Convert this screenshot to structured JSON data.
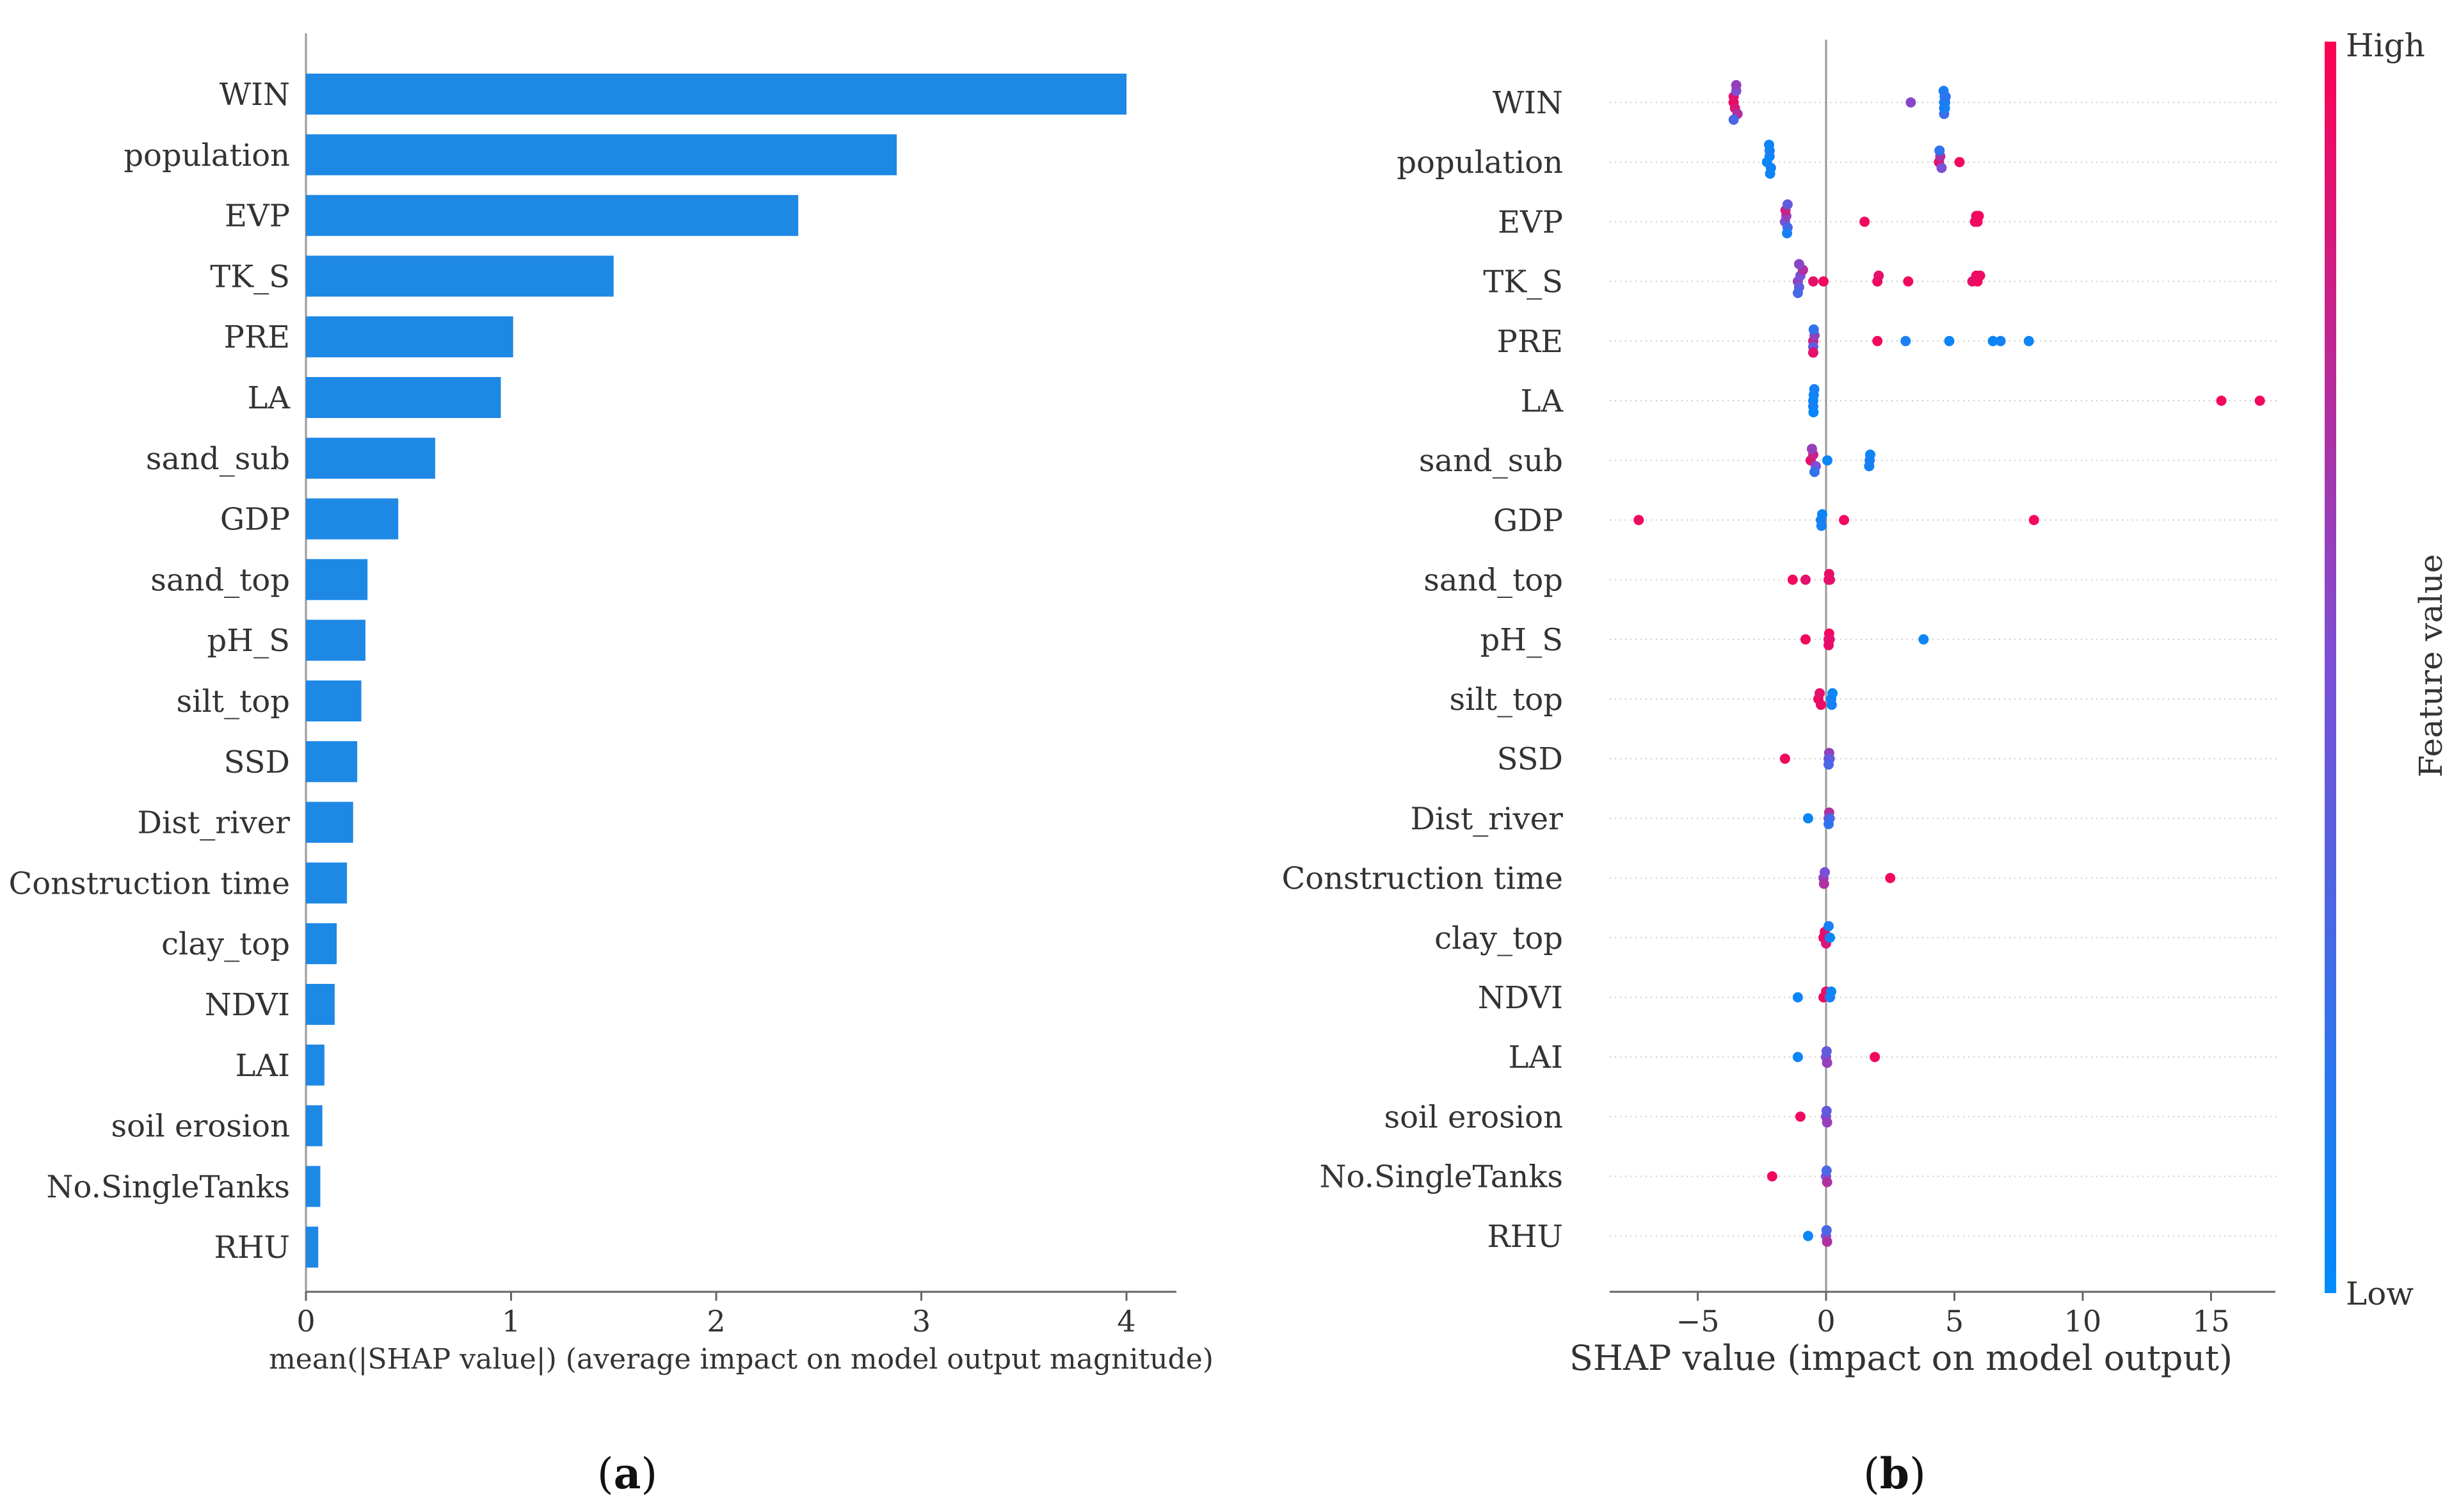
{
  "chart_data": [
    {
      "type": "bar",
      "panel_label_prefix": "(",
      "panel_label_letter": "a",
      "panel_label_suffix": ")",
      "orientation": "horizontal",
      "categories": [
        "WIN",
        "population",
        "EVP",
        "TK_S",
        "PRE",
        "LA",
        "sand_sub",
        "GDP",
        "sand_top",
        "pH_S",
        "silt_top",
        "SSD",
        "Dist_river",
        "Construction time",
        "clay_top",
        "NDVI",
        "LAI",
        "soil erosion",
        "No.SingleTanks",
        "RHU"
      ],
      "values": [
        4.0,
        2.88,
        2.4,
        1.5,
        1.01,
        0.95,
        0.63,
        0.45,
        0.3,
        0.29,
        0.27,
        0.25,
        0.23,
        0.2,
        0.15,
        0.14,
        0.09,
        0.08,
        0.07,
        0.06
      ],
      "xlabel": "mean(|SHAP value|) (average impact on model output magnitude)",
      "xlim": [
        0,
        4.2
      ],
      "xticks": [
        0,
        1,
        2,
        3,
        4
      ],
      "color": "#1e88e5"
    },
    {
      "type": "scatter",
      "panel_label_prefix": "(",
      "panel_label_letter": "b",
      "panel_label_suffix": ")",
      "categories": [
        "WIN",
        "population",
        "EVP",
        "TK_S",
        "PRE",
        "LA",
        "sand_sub",
        "GDP",
        "sand_top",
        "pH_S",
        "silt_top",
        "SSD",
        "Dist_river",
        "Construction time",
        "clay_top",
        "NDVI",
        "LAI",
        "soil erosion",
        "No.SingleTanks",
        "RHU"
      ],
      "xlabel": "SHAP value (impact on model output)",
      "xlim": [
        -8.4,
        18
      ],
      "xticks": [
        -5,
        0,
        5,
        10,
        15
      ],
      "xtick_labels": [
        "−5",
        "0",
        "5",
        "10",
        "15"
      ],
      "colorbar": {
        "title": "Feature value",
        "high_label": "High",
        "low_label": "Low",
        "high_color": "#ff0052",
        "low_color": "#008bfb"
      },
      "series": [
        {
          "feature": "WIN",
          "points": [
            [
              -3.6,
              0.95
            ],
            [
              -3.6,
              0.9
            ],
            [
              -3.55,
              0.85
            ],
            [
              -3.5,
              0.5
            ],
            [
              -3.45,
              0.7
            ],
            [
              -3.5,
              0.6
            ],
            [
              -3.6,
              0.3
            ],
            [
              3.3,
              0.55
            ],
            [
              4.6,
              0.1
            ],
            [
              4.62,
              0.15
            ],
            [
              4.64,
              0.12
            ],
            [
              4.6,
              0.2
            ],
            [
              4.58,
              0.1
            ],
            [
              4.66,
              0.18
            ],
            [
              4.6,
              0.25
            ],
            [
              4.63,
              0.08
            ]
          ]
        },
        {
          "feature": "population",
          "points": [
            [
              -2.3,
              0.05
            ],
            [
              -2.2,
              0.05
            ],
            [
              -2.15,
              0.08
            ],
            [
              -2.2,
              0.1
            ],
            [
              -2.18,
              0.06
            ],
            [
              -2.22,
              0.04
            ],
            [
              4.4,
              0.9
            ],
            [
              4.45,
              0.7
            ],
            [
              4.5,
              0.5
            ],
            [
              4.42,
              0.2
            ],
            [
              5.2,
              0.95
            ]
          ]
        },
        {
          "feature": "EVP",
          "points": [
            [
              -1.6,
              0.5
            ],
            [
              -1.55,
              0.6
            ],
            [
              -1.5,
              0.3
            ],
            [
              -1.58,
              0.8
            ],
            [
              -1.52,
              0.1
            ],
            [
              -1.5,
              0.4
            ],
            [
              1.5,
              0.95
            ],
            [
              5.8,
              0.92
            ],
            [
              5.9,
              0.95
            ],
            [
              5.85,
              0.9
            ],
            [
              5.95,
              0.97
            ]
          ]
        },
        {
          "feature": "TK_S",
          "points": [
            [
              -1.1,
              0.6
            ],
            [
              -1.0,
              0.5
            ],
            [
              -1.05,
              0.4
            ],
            [
              -0.9,
              0.7
            ],
            [
              -1.1,
              0.3
            ],
            [
              -0.5,
              0.9
            ],
            [
              -0.1,
              0.95
            ],
            [
              -1.05,
              0.55
            ],
            [
              2.0,
              0.95
            ],
            [
              2.05,
              0.9
            ],
            [
              3.2,
              0.95
            ],
            [
              5.7,
              0.9
            ],
            [
              5.9,
              0.95
            ],
            [
              5.85,
              0.92
            ],
            [
              6.0,
              0.93
            ]
          ]
        },
        {
          "feature": "PRE",
          "points": [
            [
              -0.5,
              0.8
            ],
            [
              -0.45,
              0.6
            ],
            [
              -0.5,
              0.4
            ],
            [
              -0.48,
              0.2
            ],
            [
              -0.5,
              0.9
            ],
            [
              2.0,
              0.95
            ],
            [
              3.1,
              0.1
            ],
            [
              4.8,
              0.05
            ],
            [
              6.5,
              0.05
            ],
            [
              6.8,
              0.08
            ],
            [
              7.9,
              0.05
            ]
          ]
        },
        {
          "feature": "LA",
          "points": [
            [
              -0.5,
              0.05
            ],
            [
              -0.48,
              0.05
            ],
            [
              -0.5,
              0.1
            ],
            [
              -0.46,
              0.08
            ],
            [
              -0.49,
              0.03
            ],
            [
              15.4,
              0.95
            ],
            [
              16.9,
              0.95
            ]
          ]
        },
        {
          "feature": "sand_sub",
          "points": [
            [
              -0.6,
              0.9
            ],
            [
              -0.5,
              0.8
            ],
            [
              -0.4,
              0.5
            ],
            [
              -0.55,
              0.6
            ],
            [
              -0.45,
              0.2
            ],
            [
              0.05,
              0.05
            ],
            [
              1.7,
              0.1
            ],
            [
              1.72,
              0.05
            ],
            [
              1.68,
              0.08
            ]
          ]
        },
        {
          "feature": "GDP",
          "points": [
            [
              -7.3,
              0.95
            ],
            [
              -0.2,
              0.1
            ],
            [
              -0.15,
              0.05
            ],
            [
              -0.18,
              0.08
            ],
            [
              0.7,
              0.95
            ],
            [
              8.1,
              0.95
            ]
          ]
        },
        {
          "feature": "sand_top",
          "points": [
            [
              -1.3,
              0.95
            ],
            [
              -0.8,
              0.9
            ],
            [
              0.1,
              0.95
            ],
            [
              0.15,
              0.9
            ],
            [
              0.12,
              0.92
            ]
          ]
        },
        {
          "feature": "pH_S",
          "points": [
            [
              -0.8,
              0.95
            ],
            [
              0.1,
              0.9
            ],
            [
              0.12,
              0.95
            ],
            [
              0.14,
              0.9
            ],
            [
              0.1,
              0.92
            ],
            [
              3.8,
              0.05
            ]
          ]
        },
        {
          "feature": "silt_top",
          "points": [
            [
              -0.3,
              0.95
            ],
            [
              -0.25,
              0.9
            ],
            [
              -0.2,
              0.92
            ],
            [
              0.2,
              0.1
            ],
            [
              0.25,
              0.05
            ],
            [
              0.22,
              0.08
            ]
          ]
        },
        {
          "feature": "SSD",
          "points": [
            [
              -1.6,
              0.95
            ],
            [
              0.1,
              0.5
            ],
            [
              0.12,
              0.6
            ],
            [
              0.14,
              0.4
            ],
            [
              0.1,
              0.3
            ]
          ]
        },
        {
          "feature": "Dist_river",
          "points": [
            [
              -0.7,
              0.05
            ],
            [
              0.1,
              0.5
            ],
            [
              0.12,
              0.7
            ],
            [
              0.14,
              0.3
            ],
            [
              0.1,
              0.2
            ]
          ]
        },
        {
          "feature": "Construction time",
          "points": [
            [
              -0.1,
              0.6
            ],
            [
              -0.05,
              0.5
            ],
            [
              -0.08,
              0.7
            ],
            [
              2.5,
              0.95
            ]
          ]
        },
        {
          "feature": "clay_top",
          "points": [
            [
              -0.1,
              0.95
            ],
            [
              -0.05,
              0.9
            ],
            [
              0.0,
              0.85
            ],
            [
              0.1,
              0.1
            ],
            [
              0.15,
              0.05
            ]
          ]
        },
        {
          "feature": "NDVI",
          "points": [
            [
              -1.1,
              0.05
            ],
            [
              -0.1,
              0.95
            ],
            [
              0.0,
              0.9
            ],
            [
              0.15,
              0.1
            ],
            [
              0.2,
              0.05
            ]
          ]
        },
        {
          "feature": "LAI",
          "points": [
            [
              -1.1,
              0.05
            ],
            [
              0.0,
              0.5
            ],
            [
              0.02,
              0.4
            ],
            [
              0.04,
              0.6
            ],
            [
              1.9,
              0.95
            ]
          ]
        },
        {
          "feature": "soil erosion",
          "points": [
            [
              -1.0,
              0.95
            ],
            [
              0.0,
              0.5
            ],
            [
              0.02,
              0.4
            ],
            [
              0.04,
              0.6
            ]
          ]
        },
        {
          "feature": "No.SingleTanks",
          "points": [
            [
              -2.1,
              0.95
            ],
            [
              0.0,
              0.5
            ],
            [
              0.02,
              0.3
            ],
            [
              0.04,
              0.7
            ]
          ]
        },
        {
          "feature": "RHU",
          "points": [
            [
              -0.7,
              0.05
            ],
            [
              0.0,
              0.5
            ],
            [
              0.02,
              0.3
            ],
            [
              0.04,
              0.7
            ]
          ]
        }
      ]
    }
  ]
}
